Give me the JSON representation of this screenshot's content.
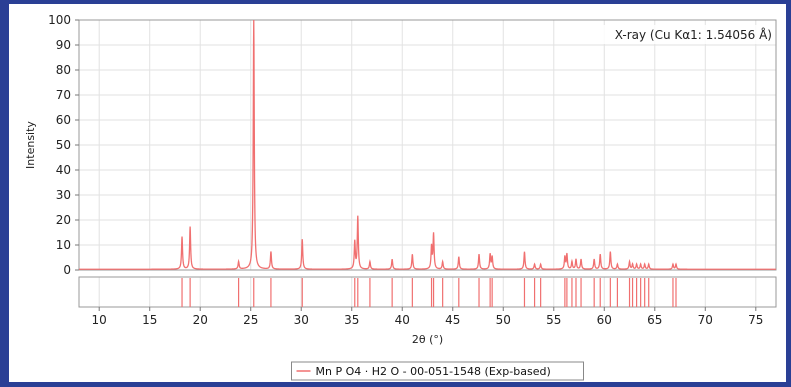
{
  "chart_data": {
    "type": "line",
    "title": "",
    "annotation": "X-ray (Cu Kα1: 1.54056 Å)",
    "xlabel": "2θ (°)",
    "ylabel": "Intensity",
    "xlim": [
      8,
      77
    ],
    "ylim": [
      0,
      100
    ],
    "xticks": [
      10,
      15,
      20,
      25,
      30,
      35,
      40,
      45,
      50,
      55,
      60,
      65,
      70,
      75
    ],
    "yticks": [
      0,
      10,
      20,
      30,
      40,
      50,
      60,
      70,
      80,
      90,
      100
    ],
    "grid": true,
    "legend_position": "bottom-center",
    "series": [
      {
        "name": "Mn P O4 · H2 O - 00-051-1548 (Exp-based)",
        "color": "#f07070",
        "peaks": [
          {
            "x": 18.2,
            "y": 13
          },
          {
            "x": 19.0,
            "y": 17
          },
          {
            "x": 23.8,
            "y": 3
          },
          {
            "x": 25.3,
            "y": 100
          },
          {
            "x": 27.0,
            "y": 7
          },
          {
            "x": 30.1,
            "y": 12
          },
          {
            "x": 35.3,
            "y": 11
          },
          {
            "x": 35.6,
            "y": 21
          },
          {
            "x": 36.8,
            "y": 3
          },
          {
            "x": 39.0,
            "y": 4
          },
          {
            "x": 41.0,
            "y": 6
          },
          {
            "x": 42.9,
            "y": 9
          },
          {
            "x": 43.1,
            "y": 14
          },
          {
            "x": 44.0,
            "y": 3
          },
          {
            "x": 45.6,
            "y": 5
          },
          {
            "x": 47.6,
            "y": 6
          },
          {
            "x": 48.7,
            "y": 6
          },
          {
            "x": 48.9,
            "y": 5
          },
          {
            "x": 52.1,
            "y": 7
          },
          {
            "x": 53.1,
            "y": 2
          },
          {
            "x": 53.7,
            "y": 2
          },
          {
            "x": 56.1,
            "y": 5
          },
          {
            "x": 56.3,
            "y": 6
          },
          {
            "x": 56.8,
            "y": 3
          },
          {
            "x": 57.2,
            "y": 4
          },
          {
            "x": 57.7,
            "y": 4
          },
          {
            "x": 59.0,
            "y": 4
          },
          {
            "x": 59.6,
            "y": 6
          },
          {
            "x": 60.6,
            "y": 7
          },
          {
            "x": 61.3,
            "y": 2
          },
          {
            "x": 62.5,
            "y": 3
          },
          {
            "x": 62.8,
            "y": 2
          },
          {
            "x": 63.2,
            "y": 2
          },
          {
            "x": 63.6,
            "y": 2
          },
          {
            "x": 64.0,
            "y": 2
          },
          {
            "x": 64.4,
            "y": 2
          },
          {
            "x": 66.8,
            "y": 2
          },
          {
            "x": 67.1,
            "y": 2
          }
        ]
      }
    ]
  }
}
